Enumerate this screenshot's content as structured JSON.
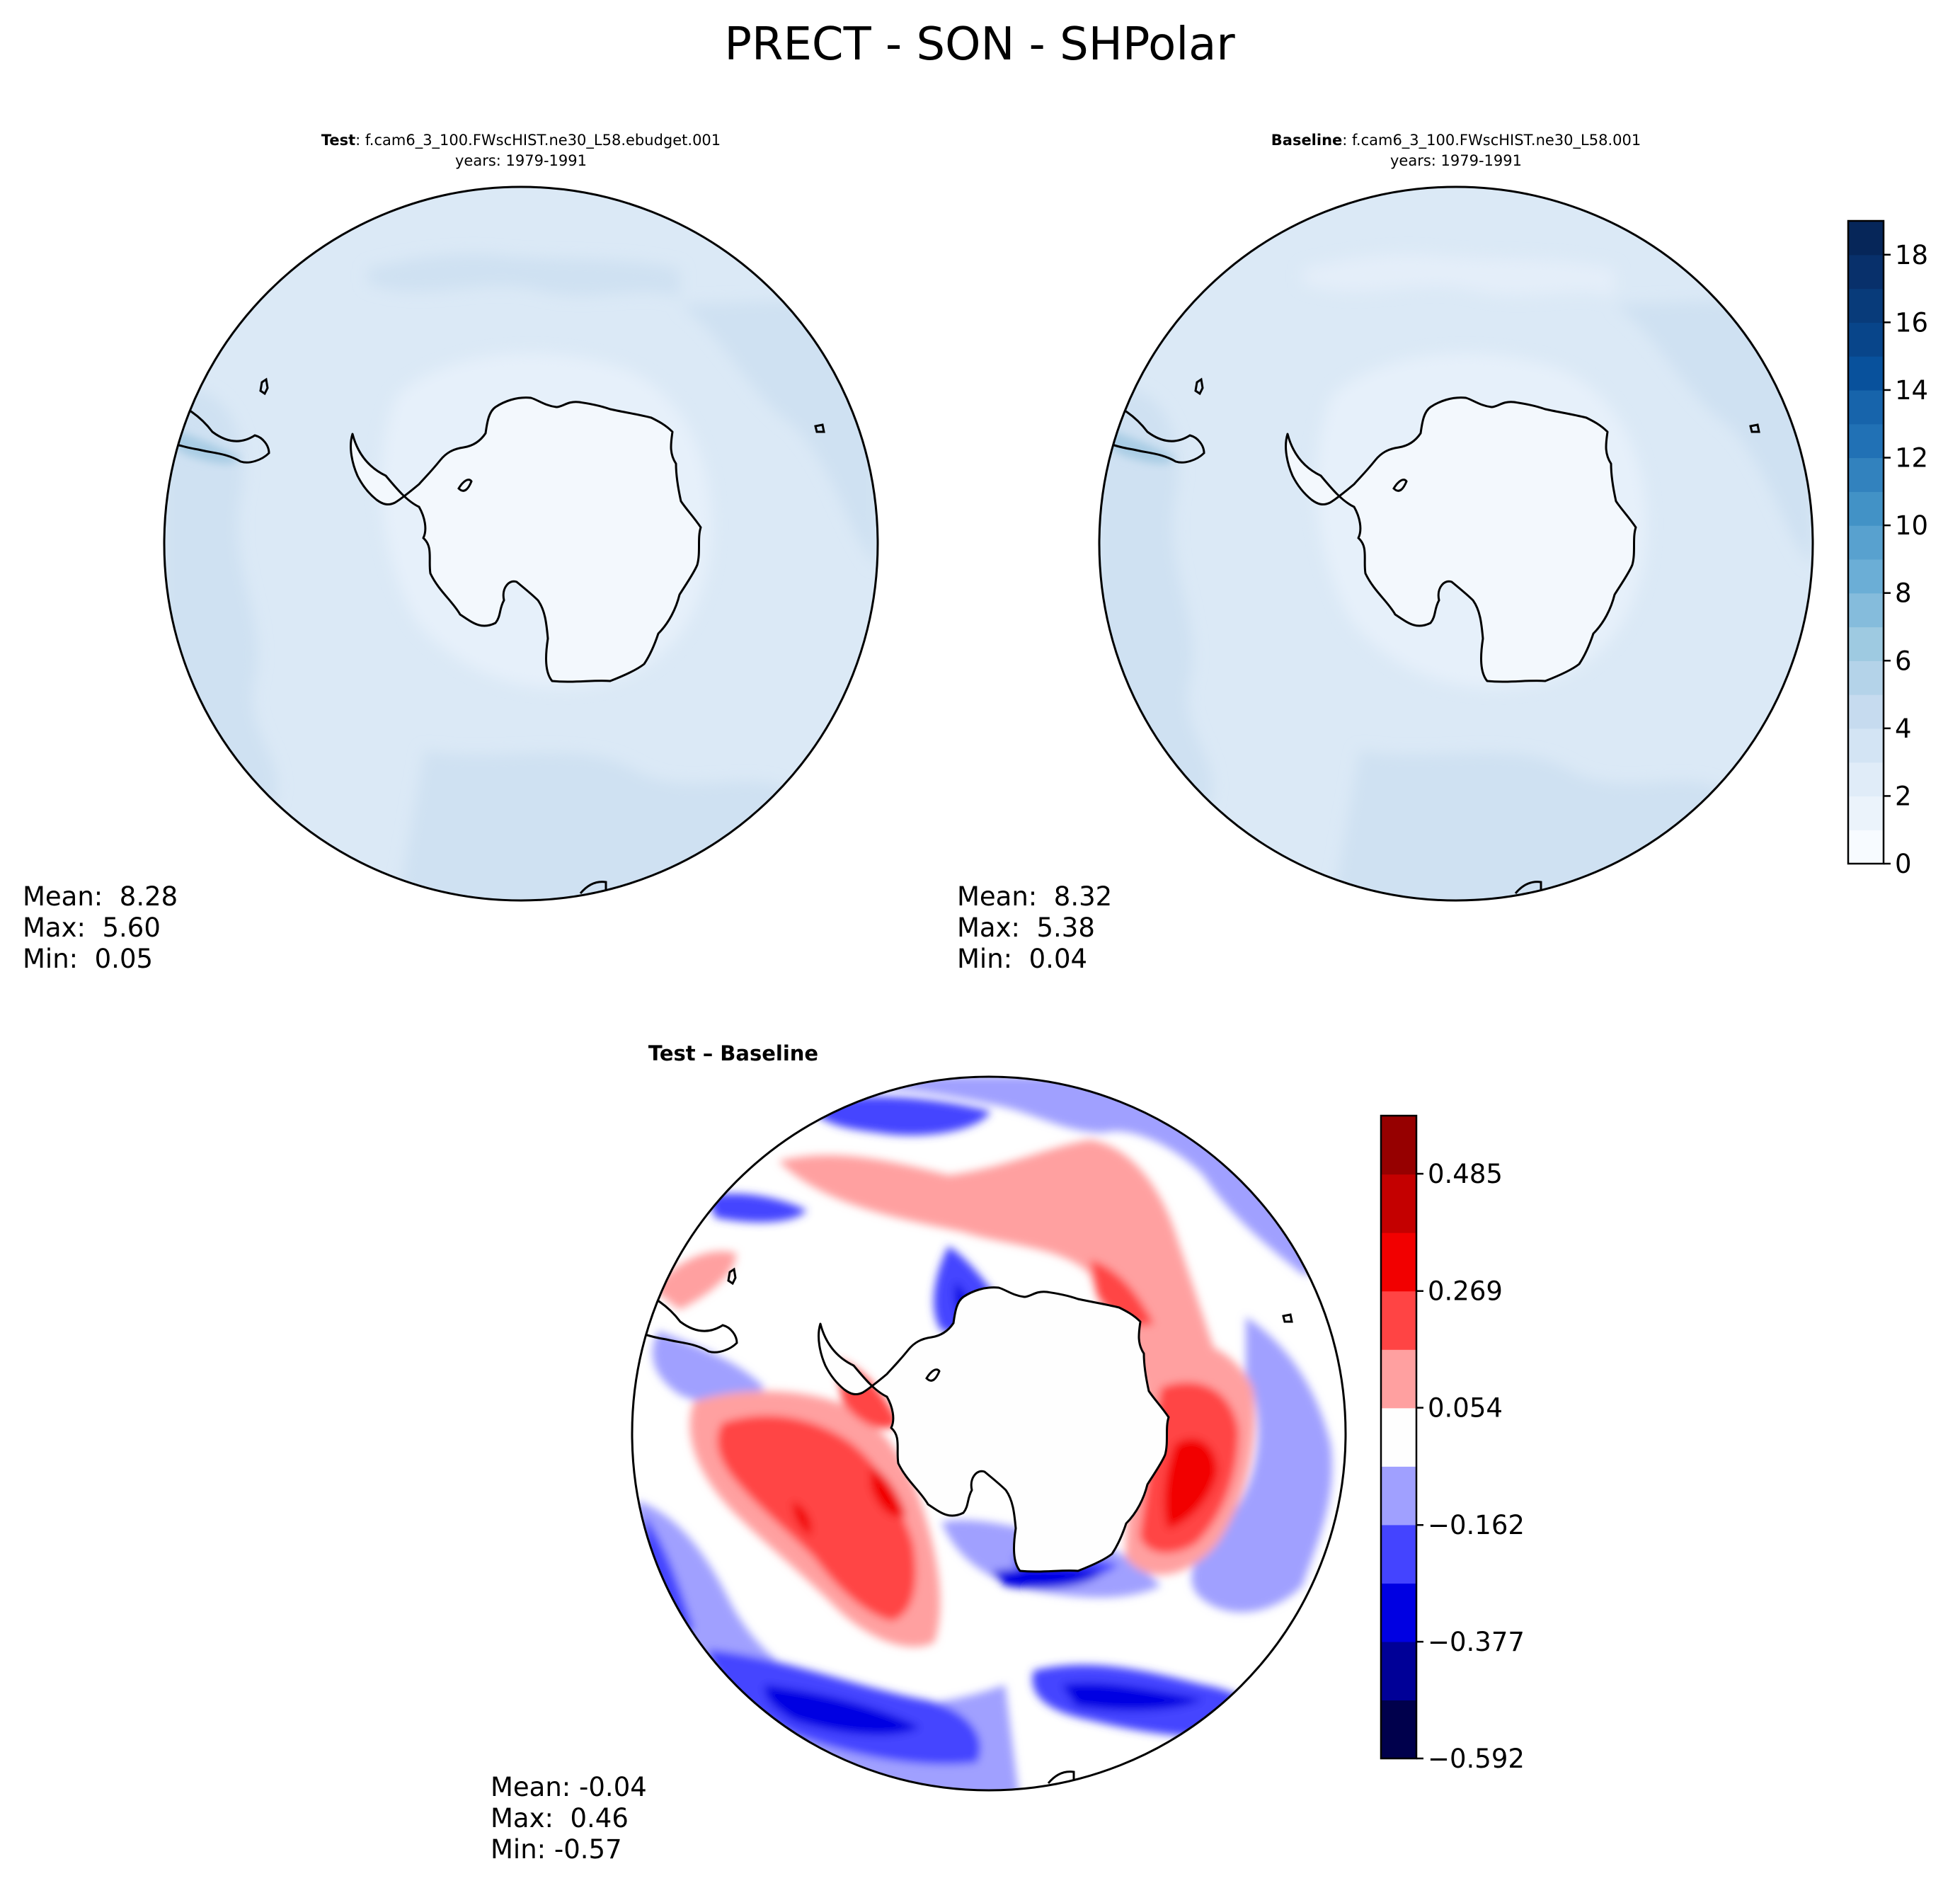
{
  "figure": {
    "title": "PRECT - SON - SHPolar"
  },
  "panels": [
    {
      "id": "test",
      "title_bold": "Test",
      "title_rest": ": f.cam6_3_100.FWscHIST.ne30_L58.ebudget.001",
      "subtitle": "years: 1979-1991",
      "stats": {
        "mean": "Mean:  8.28",
        "max": "Max:  5.60",
        "min": "Min:  0.05"
      }
    },
    {
      "id": "baseline",
      "title_bold": "Baseline",
      "title_rest": ": f.cam6_3_100.FWscHIST.ne30_L58.001",
      "subtitle": "years: 1979-1991",
      "stats": {
        "mean": "Mean:  8.32",
        "max": "Max:  5.38",
        "min": "Min:  0.04"
      }
    },
    {
      "id": "diff",
      "title_bold": "Test – Baseline",
      "title_rest": "",
      "subtitle": "",
      "stats": {
        "mean": "Mean: -0.04",
        "max": "Max:  0.46",
        "min": "Min: -0.57"
      }
    }
  ],
  "chart_data": [
    {
      "type": "heatmap",
      "name": "Test",
      "projection": "south-polar-stereographic",
      "colormap": "Blues",
      "mean": 8.28,
      "max": 5.6,
      "min": 0.05
    },
    {
      "type": "heatmap",
      "name": "Baseline",
      "projection": "south-polar-stereographic",
      "colormap": "Blues",
      "mean": 8.32,
      "max": 5.38,
      "min": 0.04
    },
    {
      "type": "heatmap",
      "name": "Test – Baseline",
      "projection": "south-polar-stereographic",
      "colormap": "seismic",
      "mean": -0.04,
      "max": 0.46,
      "min": -0.57
    }
  ],
  "colorbars": {
    "main": {
      "range": [
        0,
        19
      ],
      "levels": 19,
      "ticks": [
        {
          "value": 0,
          "label": "0"
        },
        {
          "value": 2,
          "label": "2"
        },
        {
          "value": 4,
          "label": "4"
        },
        {
          "value": 6,
          "label": "6"
        },
        {
          "value": 8,
          "label": "8"
        },
        {
          "value": 10,
          "label": "10"
        },
        {
          "value": 12,
          "label": "12"
        },
        {
          "value": 14,
          "label": "14"
        },
        {
          "value": 16,
          "label": "16"
        },
        {
          "value": 18,
          "label": "18"
        }
      ],
      "colors": [
        "#f7fbff",
        "#ebf3fb",
        "#e0ecf8",
        "#d3e4f4",
        "#c6dbef",
        "#b4d3e9",
        "#9ecae1",
        "#85bcdc",
        "#6baed6",
        "#58a1cf",
        "#4292c6",
        "#3282be",
        "#2171b5",
        "#1764ab",
        "#08519c",
        "#08458a",
        "#083b7a",
        "#08306b",
        "#062659"
      ]
    },
    "diff": {
      "range": [
        -0.592,
        0.592
      ],
      "levels": 11,
      "ticks": [
        {
          "value": -0.592,
          "label": "−0.592"
        },
        {
          "value": -0.377,
          "label": "−0.377"
        },
        {
          "value": -0.162,
          "label": "−0.162"
        },
        {
          "value": 0.054,
          "label": "0.054"
        },
        {
          "value": 0.269,
          "label": "0.269"
        },
        {
          "value": 0.485,
          "label": "0.485"
        }
      ],
      "colors": [
        "#00004c",
        "#000097",
        "#0000e2",
        "#4444ff",
        "#a0a0ff",
        "#fefefe",
        "#ffa0a0",
        "#ff4444",
        "#f20000",
        "#c40000",
        "#960000"
      ]
    }
  }
}
